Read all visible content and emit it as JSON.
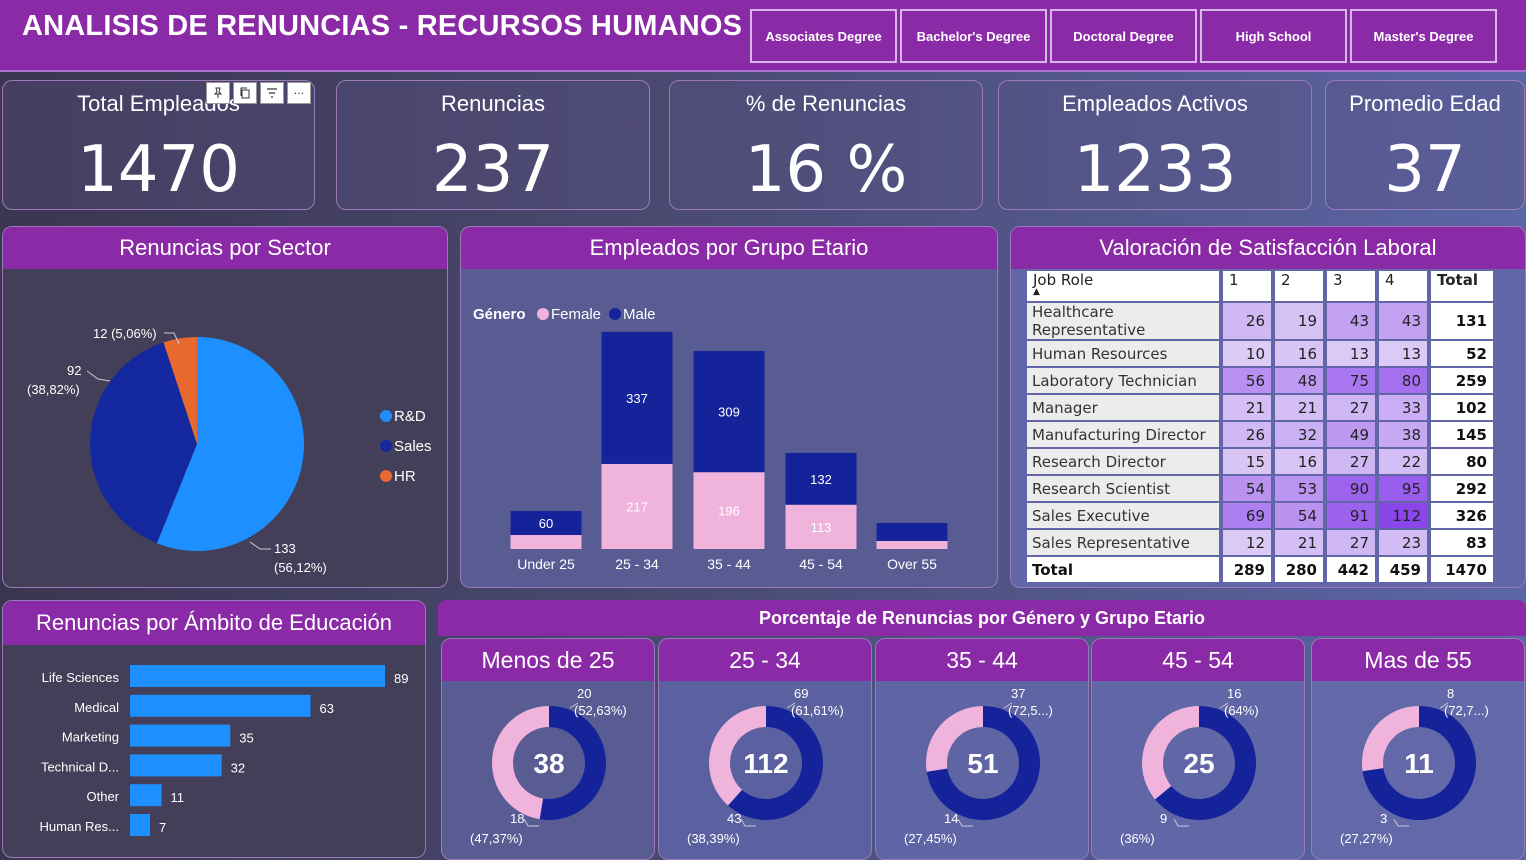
{
  "header": {
    "title": "ANALISIS DE RENUNCIAS - RECURSOS HUMANOS",
    "slicers": [
      "Associates Degree",
      "Bachelor's Degree",
      "Doctoral Degree",
      "High School",
      "Master's Degree"
    ]
  },
  "toolbar": {
    "icons": [
      "pin-icon",
      "copy-icon",
      "filter-icon",
      "more-icon"
    ],
    "more_label": "···"
  },
  "kpis": [
    {
      "title": "Total Empleados",
      "value": "1470"
    },
    {
      "title": "Renuncias",
      "value": "237"
    },
    {
      "title": "% de Renuncias",
      "value": "16 %"
    },
    {
      "title": "Empleados Activos",
      "value": "1233"
    },
    {
      "title": "Promedio Edad",
      "value": "37"
    }
  ],
  "pie": {
    "title": "Renuncias por Sector",
    "legend": [
      "R&D",
      "Sales",
      "HR"
    ],
    "colors": [
      "#1e8fff",
      "#1428a0",
      "#e8692e"
    ],
    "labels": [
      {
        "value": "133",
        "pct": "(56,12%)"
      },
      {
        "value": "92",
        "pct": "(38,82%)"
      },
      {
        "value": "12",
        "pct": "(5,06%)"
      }
    ]
  },
  "stacked": {
    "title": "Empleados por Grupo Etario",
    "legend_title": "Género",
    "legend": [
      "Female",
      "Male"
    ],
    "colors": {
      "female": "#f0b4dc",
      "male": "#14239a"
    }
  },
  "matrix": {
    "title": "Valoración de Satisfacción Laboral",
    "headers": [
      "Job Role",
      "1",
      "2",
      "3",
      "4",
      "Total"
    ],
    "rows": [
      {
        "role": "Healthcare Representative",
        "v": [
          "26",
          "19",
          "43",
          "43"
        ],
        "total": "131"
      },
      {
        "role": "Human Resources",
        "v": [
          "10",
          "16",
          "13",
          "13"
        ],
        "total": "52"
      },
      {
        "role": "Laboratory Technician",
        "v": [
          "56",
          "48",
          "75",
          "80"
        ],
        "total": "259"
      },
      {
        "role": "Manager",
        "v": [
          "21",
          "21",
          "27",
          "33"
        ],
        "total": "102"
      },
      {
        "role": "Manufacturing Director",
        "v": [
          "26",
          "32",
          "49",
          "38"
        ],
        "total": "145"
      },
      {
        "role": "Research Director",
        "v": [
          "15",
          "16",
          "27",
          "22"
        ],
        "total": "80"
      },
      {
        "role": "Research Scientist",
        "v": [
          "54",
          "53",
          "90",
          "95"
        ],
        "total": "292"
      },
      {
        "role": "Sales Executive",
        "v": [
          "69",
          "54",
          "91",
          "112"
        ],
        "total": "326"
      },
      {
        "role": "Sales Representative",
        "v": [
          "12",
          "21",
          "27",
          "23"
        ],
        "total": "83"
      }
    ],
    "total_row": {
      "role": "Total",
      "v": [
        "289",
        "280",
        "442",
        "459"
      ],
      "total": "1470"
    }
  },
  "hbar": {
    "title": "Renuncias por Ámbito de Educación",
    "color": "#1e8fff"
  },
  "donuts": {
    "band_title": "Porcentaje de Renuncias por Género y Grupo Etario",
    "colors": {
      "male": "#14239a",
      "female": "#f0b4dc"
    },
    "cards": [
      {
        "title": "Menos de 25",
        "center": "38",
        "male": "20",
        "male_pct": "(52,63%)",
        "female": "18",
        "female_pct": "(47,37%)",
        "male_frac": 0.5263
      },
      {
        "title": "25 - 34",
        "center": "112",
        "male": "69",
        "male_pct": "(61,61%)",
        "female": "43",
        "female_pct": "(38,39%)",
        "male_frac": 0.6161
      },
      {
        "title": "35 - 44",
        "center": "51",
        "male": "37",
        "male_pct": "(72,5...)",
        "female": "14",
        "female_pct": "(27,45%)",
        "male_frac": 0.7255
      },
      {
        "title": "45 - 54",
        "center": "25",
        "male": "16",
        "male_pct": "(64%)",
        "female": "9",
        "female_pct": "(36%)",
        "male_frac": 0.64
      },
      {
        "title": "Mas de 55",
        "center": "11",
        "male": "8",
        "male_pct": "(72,7...)",
        "female": "3",
        "female_pct": "(27,27%)",
        "male_frac": 0.7273
      }
    ]
  },
  "chart_data": [
    {
      "type": "pie",
      "title": "Renuncias por Sector",
      "categories": [
        "R&D",
        "Sales",
        "HR"
      ],
      "values": [
        133,
        92,
        12
      ],
      "percentages": [
        "56,12%",
        "38,82%",
        "5,06%"
      ],
      "legend": "right"
    },
    {
      "type": "bar",
      "stacked": true,
      "title": "Empleados por Grupo Etario",
      "categories": [
        "Under 25",
        "25 - 34",
        "35 - 44",
        "45 - 54",
        "Over 55"
      ],
      "series": [
        {
          "name": "Female",
          "values": [
            null,
            217,
            196,
            113,
            null
          ]
        },
        {
          "name": "Male",
          "values": [
            60,
            337,
            309,
            132,
            null
          ]
        }
      ],
      "legend": "top-left"
    },
    {
      "type": "table",
      "title": "Valoración de Satisfacción Laboral",
      "columns": [
        "Job Role",
        "1",
        "2",
        "3",
        "4",
        "Total"
      ]
    },
    {
      "type": "bar",
      "orientation": "horizontal",
      "title": "Renuncias por Ámbito de Educación",
      "categories": [
        "Life Sciences",
        "Medical",
        "Marketing",
        "Technical D...",
        "Other",
        "Human Res..."
      ],
      "values": [
        89,
        63,
        35,
        32,
        11,
        7
      ]
    },
    {
      "type": "pie",
      "donut": true,
      "title": "Porcentaje de Renuncias por Género y Grupo Etario",
      "groups": [
        "Menos de 25",
        "25 - 34",
        "35 - 44",
        "45 - 54",
        "Mas de 55"
      ],
      "series": [
        {
          "name": "Male",
          "values": [
            20,
            69,
            37,
            16,
            8
          ]
        },
        {
          "name": "Female",
          "values": [
            18,
            43,
            14,
            9,
            3
          ]
        }
      ]
    }
  ]
}
